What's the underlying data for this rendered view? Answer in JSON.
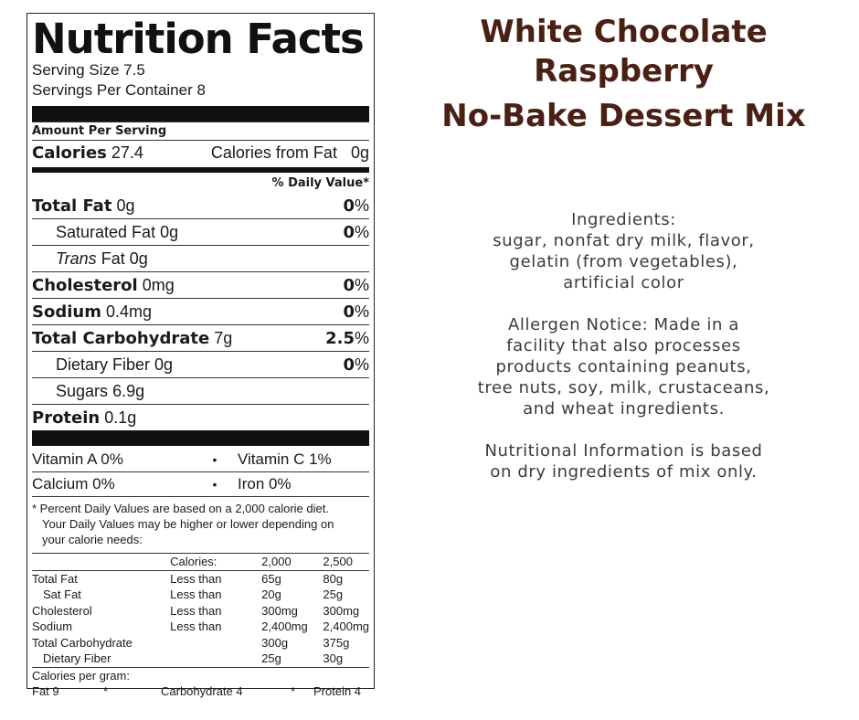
{
  "label": {
    "title": "Nutrition Facts",
    "serving_size": "Serving Size 7.5",
    "servings_per_container": "Servings Per Container 8",
    "amount_per_serving": "Amount Per Serving",
    "calories_label": "Calories",
    "calories_value": "27.4",
    "calories_from_fat_label": "Calories from Fat",
    "calories_from_fat_value": "0g",
    "daily_value_header": "% Daily Value*",
    "nutrients": [
      {
        "name": "Total Fat",
        "amount": "0g",
        "pct": "0",
        "bold": true,
        "indent": false
      },
      {
        "name": "Saturated Fat",
        "amount": "0g",
        "pct": "0",
        "bold": false,
        "indent": true
      },
      {
        "name_italic": "Trans",
        "name": "Fat",
        "amount": "0g",
        "pct": "",
        "bold": false,
        "indent": true
      },
      {
        "name": "Cholesterol",
        "amount": "0mg",
        "pct": "0",
        "bold": true,
        "indent": false
      },
      {
        "name": "Sodium",
        "amount": "0.4mg",
        "pct": "0",
        "bold": true,
        "indent": false
      },
      {
        "name": "Total Carbohydrate",
        "amount": "7g",
        "pct": "2.5",
        "bold": true,
        "indent": false
      },
      {
        "name": "Dietary Fiber",
        "amount": "0g",
        "pct": "0",
        "bold": false,
        "indent": true
      },
      {
        "name": "Sugars",
        "amount": "6.9g",
        "pct": "",
        "bold": false,
        "indent": true
      },
      {
        "name": "Protein",
        "amount": "0.1g",
        "pct": "",
        "bold": true,
        "indent": false
      }
    ],
    "percent_sign": "%",
    "vitamins": [
      {
        "left": "Vitamin A 0%",
        "right": "Vitamin C 1%"
      },
      {
        "left": "Calcium 0%",
        "right": "Iron 0%"
      }
    ],
    "bullet": "•",
    "footnote_line1": "* Percent Daily Values are based on a 2,000 calorie diet.",
    "footnote_line2": "Your Daily Values may be higher or lower depending on",
    "footnote_line3": "your calorie needs:",
    "dv_table": {
      "header": [
        "",
        "Calories:",
        "2,000",
        "2,500"
      ],
      "rows": [
        [
          "Total Fat",
          "Less than",
          "65g",
          "80g"
        ],
        [
          "Sat Fat",
          "Less than",
          "20g",
          "25g"
        ],
        [
          "Cholesterol",
          "Less than",
          "300mg",
          "300mg"
        ],
        [
          "Sodium",
          "Less than",
          "2,400mg",
          "2,400mg"
        ],
        [
          "Total Carbohydrate",
          "",
          "300g",
          "375g"
        ],
        [
          "Dietary Fiber",
          "",
          "25g",
          "30g"
        ]
      ]
    },
    "calories_per_gram_label": "Calories per gram:",
    "calories_per_gram": {
      "fat": "Fat 9",
      "star1": "*",
      "carb": "Carbohydrate 4",
      "star2": "*",
      "protein": "Protein 4"
    }
  },
  "product": {
    "title_lines": [
      "White Chocolate",
      "Raspberry",
      "No-Bake Dessert Mix"
    ],
    "title_color": "#4a1f14",
    "ingredients_lines": [
      "Ingredients:",
      "sugar, nonfat dry milk, flavor,",
      "gelatin (from vegetables),",
      "artificial color"
    ],
    "allergen_lines": [
      "Allergen Notice: Made in a",
      "facility that also processes",
      "products containing peanuts,",
      "tree nuts, soy, milk, crustaceans,",
      "and wheat ingredients."
    ],
    "nutrition_note_lines": [
      "Nutritional Information is based",
      "on dry ingredients of mix only."
    ]
  }
}
